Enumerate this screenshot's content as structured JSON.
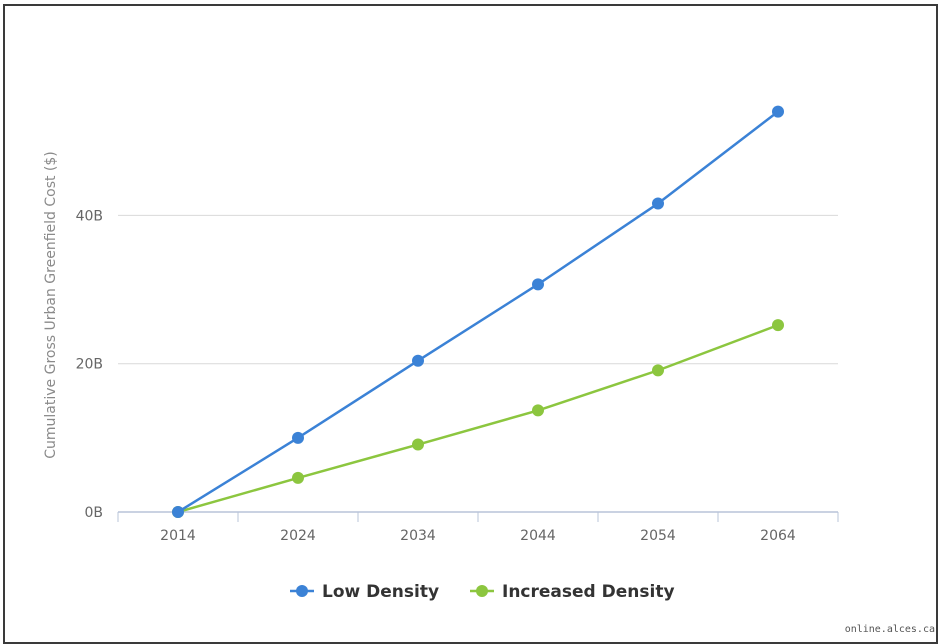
{
  "chart_data": {
    "type": "line",
    "categories": [
      "2014",
      "2024",
      "2034",
      "2044",
      "2054",
      "2064"
    ],
    "series": [
      {
        "name": "Low Density",
        "color": "#3b82d6",
        "values": [
          0,
          10,
          20.4,
          30.7,
          41.6,
          54
        ]
      },
      {
        "name": "Increased Density",
        "color": "#8cc63f",
        "values": [
          0,
          4.6,
          9.1,
          13.7,
          19.1,
          25.2
        ]
      }
    ],
    "ylabel": "Cumulative Gross Urban Greenfield Cost ($)",
    "xlabel": "",
    "ylim": [
      0,
      54
    ],
    "yticks": [
      {
        "value": 0,
        "label": "0B"
      },
      {
        "value": 20,
        "label": "20B"
      },
      {
        "value": 40,
        "label": "40B"
      }
    ],
    "grid": true,
    "legend_position": "bottom-center"
  },
  "credit": "online.alces.ca"
}
